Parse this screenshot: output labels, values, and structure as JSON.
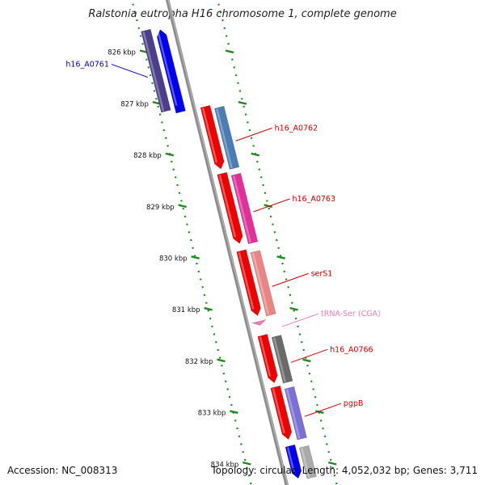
{
  "title": "Ralstonia eutropha H16 chromosome 1, complete genome",
  "footer": {
    "accession": "Accession: NC_008313",
    "summary": "Topology: circular; Length: 4,052,032 bp; Genes: 3,711"
  },
  "scale": [
    {
      "label": "826 kbp",
      "kbp": 826
    },
    {
      "label": "827 kbp",
      "kbp": 827
    },
    {
      "label": "828 kbp",
      "kbp": 828
    },
    {
      "label": "829 kbp",
      "kbp": 829
    },
    {
      "label": "830 kbp",
      "kbp": 830
    },
    {
      "label": "831 kbp",
      "kbp": 831
    },
    {
      "label": "832 kbp",
      "kbp": 832
    },
    {
      "label": "833 kbp",
      "kbp": 833
    },
    {
      "label": "834 kbp",
      "kbp": 834
    }
  ],
  "genes": [
    {
      "label": "h16_A0761",
      "strand": "reverse",
      "start_kbp": 825.55,
      "end_kbp": 827.2,
      "arrow_color": "#0000ee",
      "function_color": "#4b3f8c",
      "label_color": "#0000cc"
    },
    {
      "label": "h16_A0762",
      "strand": "forward",
      "start_kbp": 827.05,
      "end_kbp": 828.3,
      "arrow_color": "#ee0000",
      "function_color": "#4a7db5",
      "label_color": "#cc0000"
    },
    {
      "label": "h16_A0763",
      "strand": "forward",
      "start_kbp": 828.35,
      "end_kbp": 829.75,
      "arrow_color": "#ee0000",
      "function_color": "#e0309a",
      "label_color": "#cc0000"
    },
    {
      "label": "serS1",
      "strand": "forward",
      "start_kbp": 829.85,
      "end_kbp": 831.15,
      "arrow_color": "#ee0000",
      "function_color": "#e98585",
      "label_color": "#cc0000"
    },
    {
      "label": "tRNA-Ser (CGA)",
      "strand": "forward",
      "start_kbp": 831.24,
      "end_kbp": 831.32,
      "arrow_color": "#f07ab8",
      "function_color": "",
      "label_color": "#f080b8"
    },
    {
      "label": "h16_A0766",
      "strand": "forward",
      "start_kbp": 831.5,
      "end_kbp": 832.45,
      "arrow_color": "#ee0000",
      "function_color": "#6a6a6a",
      "label_color": "#cc0000"
    },
    {
      "label": "pgpB",
      "strand": "forward",
      "start_kbp": 832.5,
      "end_kbp": 833.55,
      "arrow_color": "#ee0000",
      "function_color": "#7c6fd6",
      "label_color": "#cc0000"
    },
    {
      "label": "",
      "strand": "forward",
      "start_kbp": 833.65,
      "end_kbp": 834.3,
      "arrow_color": "#0000ee",
      "function_color": "#aaaaaa",
      "label_color": "#cc0000"
    }
  ]
}
